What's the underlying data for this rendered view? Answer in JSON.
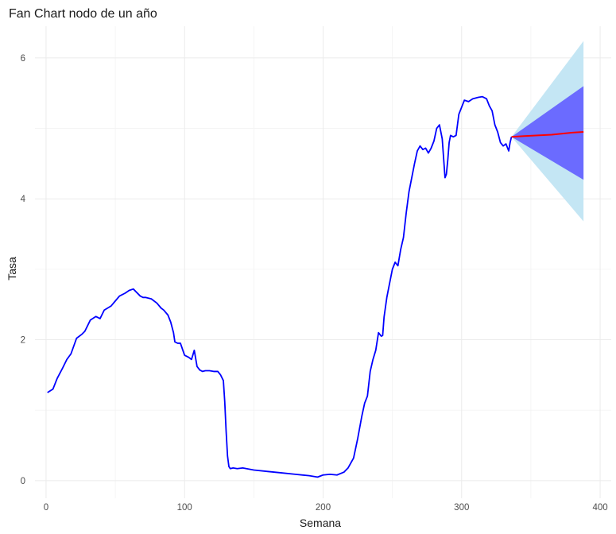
{
  "chart_data": {
    "type": "line",
    "title": "Fan Chart nodo de un año",
    "xlabel": "Semana",
    "ylabel": "Tasa",
    "xlim": [
      -8,
      408
    ],
    "ylim": [
      -0.25,
      6.45
    ],
    "x_ticks": [
      0,
      100,
      200,
      300,
      400
    ],
    "y_ticks": [
      0,
      2,
      4,
      6
    ],
    "grid": true,
    "colors": {
      "history": "#0000ff",
      "forecast": "#ff0000",
      "band_inner": "#6b6bff",
      "band_outer": "#c4e6f4",
      "grid": "#ebebeb"
    },
    "series": [
      {
        "x": [
          1,
          5,
          8,
          12,
          15,
          18,
          22,
          26,
          28,
          32,
          36,
          39,
          42,
          47,
          50,
          53,
          57,
          60,
          63,
          65,
          68,
          70,
          72,
          76,
          80,
          83,
          85,
          88,
          90,
          92,
          93,
          95,
          97,
          100,
          103,
          105,
          107,
          109,
          111,
          113,
          115,
          118,
          121,
          124,
          126,
          128,
          129,
          130,
          131,
          132,
          133,
          135,
          138,
          142,
          150,
          160,
          170,
          180,
          190,
          196,
          200,
          205,
          210,
          215,
          218,
          222,
          225,
          228,
          230,
          232,
          234,
          236,
          238,
          240,
          242,
          243,
          244,
          246,
          248,
          250,
          252,
          254,
          256,
          258,
          260,
          262,
          264,
          266,
          268,
          270,
          272,
          274,
          276,
          278,
          280,
          282,
          284,
          286,
          288,
          289,
          290,
          291,
          292,
          294,
          296,
          298,
          300,
          302,
          305,
          308,
          312,
          315,
          318,
          320,
          322,
          324,
          326,
          328,
          330,
          332,
          334,
          335,
          336
        ],
        "values": [
          1.25,
          1.3,
          1.45,
          1.6,
          1.72,
          1.8,
          2.02,
          2.08,
          2.12,
          2.28,
          2.33,
          2.3,
          2.42,
          2.48,
          2.55,
          2.62,
          2.66,
          2.7,
          2.72,
          2.68,
          2.62,
          2.6,
          2.6,
          2.58,
          2.52,
          2.45,
          2.42,
          2.35,
          2.25,
          2.1,
          1.97,
          1.95,
          1.95,
          1.78,
          1.75,
          1.72,
          1.85,
          1.62,
          1.57,
          1.55,
          1.56,
          1.56,
          1.55,
          1.55,
          1.5,
          1.42,
          1.12,
          0.7,
          0.35,
          0.2,
          0.17,
          0.18,
          0.17,
          0.18,
          0.15,
          0.13,
          0.11,
          0.09,
          0.07,
          0.05,
          0.08,
          0.09,
          0.08,
          0.12,
          0.18,
          0.32,
          0.6,
          0.92,
          1.1,
          1.2,
          1.55,
          1.72,
          1.85,
          2.1,
          2.05,
          2.06,
          2.32,
          2.6,
          2.8,
          3.0,
          3.1,
          3.05,
          3.28,
          3.45,
          3.8,
          4.1,
          4.3,
          4.5,
          4.68,
          4.75,
          4.7,
          4.72,
          4.65,
          4.72,
          4.82,
          5.0,
          5.05,
          4.85,
          4.3,
          4.35,
          4.55,
          4.8,
          4.9,
          4.88,
          4.9,
          5.2,
          5.3,
          5.4,
          5.38,
          5.42,
          5.44,
          5.45,
          5.42,
          5.32,
          5.25,
          5.05,
          4.95,
          4.8,
          4.75,
          4.78,
          4.68,
          4.8,
          4.88
        ]
      },
      {
        "x": [
          336,
          345,
          355,
          365,
          375,
          380,
          388
        ],
        "values": [
          4.88,
          4.89,
          4.9,
          4.91,
          4.93,
          4.94,
          4.95
        ]
      }
    ],
    "band_x": [
      336,
      388
    ],
    "band_inner_low": [
      4.88,
      4.27
    ],
    "band_inner_high": [
      4.88,
      5.6
    ],
    "band_outer_low": [
      4.88,
      3.68
    ],
    "band_outer_high": [
      4.88,
      6.24
    ]
  }
}
